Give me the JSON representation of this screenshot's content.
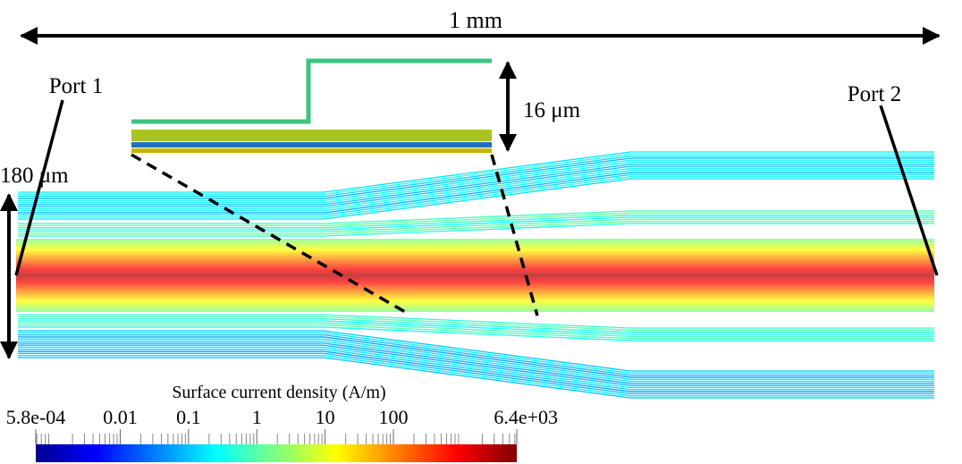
{
  "labels": {
    "width": "1 mm",
    "port1": "Port 1",
    "port2": "Port 2",
    "height_inset": "16 μm",
    "height_total": "180 μm"
  },
  "colorbar": {
    "title": "Surface current density (A/m)",
    "scale": "log",
    "range": [
      0.00058,
      6400
    ],
    "ticks": [
      {
        "value": 0.00058,
        "label": "5.8e-04"
      },
      0.01,
      0.1,
      1,
      10,
      100,
      {
        "value": 6400,
        "label": "6.4e+03"
      }
    ]
  }
}
